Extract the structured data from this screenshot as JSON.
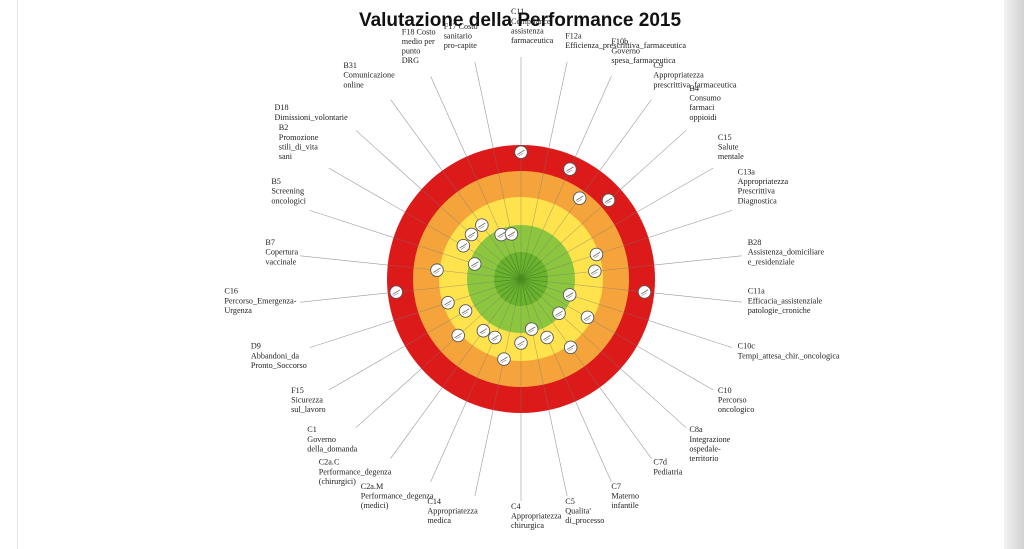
{
  "title": "Valutazione della Performance 2015",
  "chart_data": {
    "type": "radar",
    "title": "Valutazione della Performance 2015",
    "bands": [
      {
        "name": "dark-green",
        "color": "#6bb231"
      },
      {
        "name": "light-green",
        "color": "#8cc63f"
      },
      {
        "name": "yellow",
        "color": "#ffe34d"
      },
      {
        "name": "orange",
        "color": "#f5a43b"
      },
      {
        "name": "red",
        "color": "#dd1a1a"
      }
    ],
    "scale": [
      0,
      5
    ],
    "indicators": [
      {
        "code": "C11",
        "label": "C11\nCompliance\nassistenza\nfarmaceutica",
        "value": 4.95
      },
      {
        "code": "F12a",
        "label": "F12a\nEfficienza_prescrittiva_farmaceutica",
        "value": null
      },
      {
        "code": "F10b",
        "label": "F10b\nGoverno\nspesa_farmaceutica",
        "value": 4.7
      },
      {
        "code": "C9",
        "label": "C9\nAppropriatezza\nprescrittiva_farmaceutica",
        "value": 3.9
      },
      {
        "code": "B4",
        "label": "B4\nConsumo\nfarmaci\noppioidi",
        "value": 4.6
      },
      {
        "code": "C15",
        "label": "C15\nSalute\nmentale",
        "value": null
      },
      {
        "code": "C13a",
        "label": "C13a\nAppropriatezza\nPrescrittiva\nDiagnostica",
        "value": 3.1
      },
      {
        "code": "B28",
        "label": "B28\nAssistenza_domiciliare\ne_residenziale",
        "value": 2.9
      },
      {
        "code": "C11a",
        "label": "C11a\nEfficacia_assistenziale\npatologie_croniche",
        "value": 4.85
      },
      {
        "code": "C10c",
        "label": "C10c\nTempi_attesa_chir._oncologica",
        "value": 2.0
      },
      {
        "code": "C10",
        "label": "C10\nPercorso\noncologico",
        "value": 3.0
      },
      {
        "code": "C8a",
        "label": "C8a\nIntegrazione\nospedale-\nterritorio",
        "value": 2.0
      },
      {
        "code": "C7d",
        "label": "C7d\nPediatria",
        "value": 3.3
      },
      {
        "code": "C7",
        "label": "C7\nMaterno\ninfantile",
        "value": 2.5
      },
      {
        "code": "C5",
        "label": "C5\nQualita'\ndi_processo",
        "value": 2.0
      },
      {
        "code": "C4",
        "label": "C4\nAppropriatezza\nchirurgica",
        "value": 2.5
      },
      {
        "code": "C14",
        "label": "C14\nAppropriatezza\nmedica",
        "value": 3.2
      },
      {
        "code": "C2a.M",
        "label": "C2a.M\nPerformance_degenza\n(medici)",
        "value": 2.5
      },
      {
        "code": "C2a.C",
        "label": "C2a.C\nPerformance_degenza\n(chirurgici)",
        "value": 2.5
      },
      {
        "code": "C1",
        "label": "C1\nGoverno\ndella_domanda",
        "value": 3.3
      },
      {
        "code": "F15",
        "label": "F15\nSicurezza\nsul_lavoro",
        "value": 2.5
      },
      {
        "code": "D9",
        "label": "D9\nAbbandoni_da\nPronto_Soccorso",
        "value": 3.0
      },
      {
        "code": "C16",
        "label": "C16\nPercorso_Emergenza-\nUrgenza",
        "value": 4.9
      },
      {
        "code": "B7",
        "label": "B7\nCopertura\nvaccinale",
        "value": 3.3
      },
      {
        "code": "B5",
        "label": "B5\nScreening\noncologici",
        "value": 1.9
      },
      {
        "code": "B2",
        "label": "B2\nPromozione\nstili_di_vita\nsani",
        "value": 2.6
      },
      {
        "code": "D18",
        "label": "D18\nDimissioni_volontarie",
        "value": 2.6
      },
      {
        "code": "B31",
        "label": "B31\nComunicazione\nonline",
        "value": 2.6
      },
      {
        "code": "F18",
        "label": "F18 Costo\nmedio per\npunto\nDRG",
        "value": 1.9
      },
      {
        "code": "F17",
        "label": "F17 Costo\nsanitario\npro-capite",
        "value": 1.8
      }
    ]
  }
}
